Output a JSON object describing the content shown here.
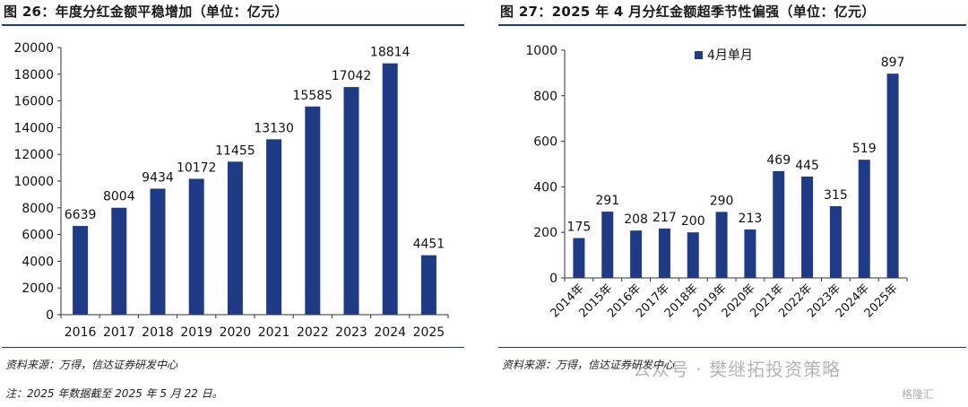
{
  "left": {
    "title": "图 26：年度分红金额平稳增加（单位：亿元）",
    "source": "资料来源：万得，信达证券研发中心",
    "note": "注：2025 年数据截至 2025 年 5 月 22 日。"
  },
  "right": {
    "title": "图 27：2025 年 4 月分红金额超季节性偏强（单位：亿元）",
    "source": "资料来源：万得，信达证券研发中心"
  },
  "watermark": {
    "text": "公众号 · 樊继拓投资策略",
    "logo": "格隆汇"
  },
  "colors": {
    "bar": "#1f3b86",
    "axis": "#333333",
    "rule": "#1f3b7a"
  },
  "chart_data": [
    {
      "type": "bar",
      "title": "图 26：年度分红金额平稳增加（单位：亿元）",
      "categories": [
        "2016",
        "2017",
        "2018",
        "2019",
        "2020",
        "2021",
        "2022",
        "2023",
        "2024",
        "2025"
      ],
      "values": [
        6639,
        8004,
        9434,
        10172,
        11455,
        13130,
        15585,
        17042,
        18814,
        4451
      ],
      "ylim": [
        0,
        20000
      ],
      "yticks": [
        0,
        2000,
        4000,
        6000,
        8000,
        10000,
        12000,
        14000,
        16000,
        18000,
        20000
      ],
      "xlabel": "",
      "ylabel": "",
      "grid": false,
      "data_labels": true,
      "legend": null
    },
    {
      "type": "bar",
      "title": "图 27：2025 年 4 月分红金额超季节性偏强（单位：亿元）",
      "categories": [
        "2014年",
        "2015年",
        "2016年",
        "2017年",
        "2018年",
        "2019年",
        "2020年",
        "2021年",
        "2022年",
        "2023年",
        "2024年",
        "2025年"
      ],
      "series": [
        {
          "name": "4月单月",
          "values": [
            175,
            291,
            208,
            217,
            200,
            290,
            213,
            469,
            445,
            315,
            519,
            897
          ]
        }
      ],
      "ylim": [
        0,
        1000
      ],
      "yticks": [
        0,
        200,
        400,
        600,
        800,
        1000
      ],
      "xlabel": "",
      "ylabel": "",
      "grid": false,
      "data_labels": true,
      "legend": "top-left"
    }
  ]
}
